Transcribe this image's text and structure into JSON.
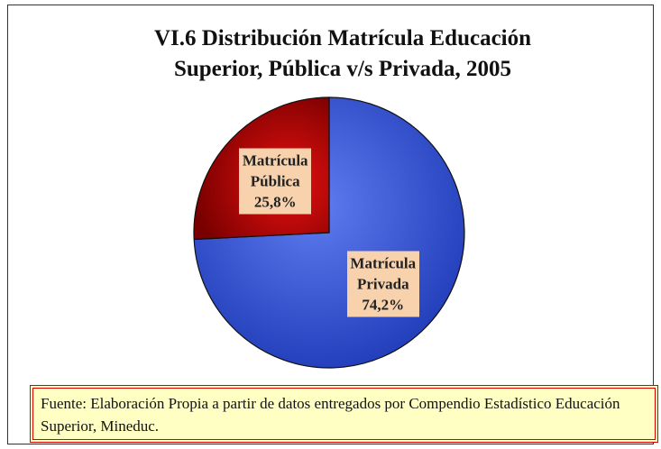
{
  "chart_data": {
    "type": "pie",
    "title": "VI.6 Distribución Matrícula Educación Superior, Pública v/s Privada, 2005",
    "categories": [
      "Matrícula Privada",
      "Matrícula Pública"
    ],
    "values": [
      74.2,
      25.8
    ],
    "value_labels": [
      "74,2%",
      "25,8%"
    ],
    "colors": [
      "#3558e0",
      "#c80000"
    ],
    "source": "Fuente: Elaboración Propia a partir de datos entregados por Compendio Estadístico Educación Superior, Mineduc."
  }
}
